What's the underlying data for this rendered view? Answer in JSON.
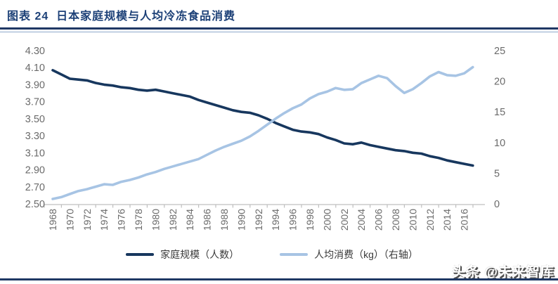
{
  "header": {
    "title": "图表 24  日本家庭规模与人均冷冻食品消费"
  },
  "chart_data": {
    "type": "line",
    "title": "日本家庭规模与人均冷冻食品消费",
    "grid": false,
    "legend_position": "bottom",
    "x": [
      1968,
      1969,
      1970,
      1971,
      1972,
      1973,
      1974,
      1975,
      1976,
      1977,
      1978,
      1979,
      1980,
      1981,
      1982,
      1983,
      1984,
      1985,
      1986,
      1987,
      1988,
      1989,
      1990,
      1991,
      1992,
      1993,
      1994,
      1995,
      1996,
      1997,
      1998,
      1999,
      2000,
      2001,
      2002,
      2003,
      2004,
      2005,
      2006,
      2007,
      2008,
      2009,
      2010,
      2011,
      2012,
      2013,
      2014,
      2015,
      2016,
      2017
    ],
    "series": [
      {
        "key": "household",
        "name": "家庭规模（人数）",
        "axis": "left",
        "color": "#17375e",
        "values": [
          4.07,
          4.02,
          3.97,
          3.96,
          3.95,
          3.92,
          3.9,
          3.89,
          3.87,
          3.86,
          3.84,
          3.83,
          3.84,
          3.82,
          3.8,
          3.78,
          3.76,
          3.72,
          3.69,
          3.66,
          3.63,
          3.6,
          3.58,
          3.57,
          3.54,
          3.5,
          3.45,
          3.41,
          3.37,
          3.35,
          3.34,
          3.32,
          3.28,
          3.25,
          3.21,
          3.2,
          3.22,
          3.19,
          3.17,
          3.15,
          3.13,
          3.12,
          3.1,
          3.09,
          3.06,
          3.04,
          3.01,
          2.99,
          2.97,
          2.95
        ]
      },
      {
        "key": "consumption",
        "name": "人均消费（kg）（右轴）",
        "axis": "right",
        "color": "#a7c4e4",
        "values": [
          0.8,
          1.1,
          1.6,
          2.1,
          2.4,
          2.8,
          3.2,
          3.1,
          3.6,
          3.9,
          4.3,
          4.8,
          5.2,
          5.7,
          6.1,
          6.5,
          6.9,
          7.3,
          8.0,
          8.7,
          9.3,
          9.8,
          10.3,
          11.0,
          11.9,
          12.9,
          13.9,
          14.8,
          15.6,
          16.2,
          17.2,
          17.9,
          18.3,
          18.9,
          18.6,
          18.7,
          19.7,
          20.3,
          20.9,
          20.5,
          19.2,
          18.1,
          18.7,
          19.7,
          20.8,
          21.5,
          21.0,
          20.9,
          21.3,
          22.3
        ]
      }
    ],
    "left_axis": {
      "min": 2.5,
      "max": 4.3,
      "ticks": [
        "4.30",
        "4.10",
        "3.90",
        "3.70",
        "3.50",
        "3.30",
        "3.10",
        "2.90",
        "2.70",
        "2.50"
      ]
    },
    "right_axis": {
      "min": 0,
      "max": 25,
      "ticks": [
        "25",
        "20",
        "15",
        "10",
        "5",
        "0"
      ]
    },
    "x_ticks": [
      "1968",
      "1970",
      "1972",
      "1974",
      "1976",
      "1978",
      "1980",
      "1982",
      "1984",
      "1986",
      "1988",
      "1990",
      "1992",
      "1994",
      "1996",
      "1998",
      "2000",
      "2002",
      "2004",
      "2006",
      "2008",
      "2010",
      "2012",
      "2014",
      "2016"
    ]
  },
  "footer": {
    "watermark": "头条 @未来智库"
  },
  "colors": {
    "navy": "#17375e",
    "light_blue": "#a7c4e4",
    "title_blue": "#1c4077",
    "axis_text": "#6b6b6b",
    "axis_line": "#bfbfbf"
  }
}
